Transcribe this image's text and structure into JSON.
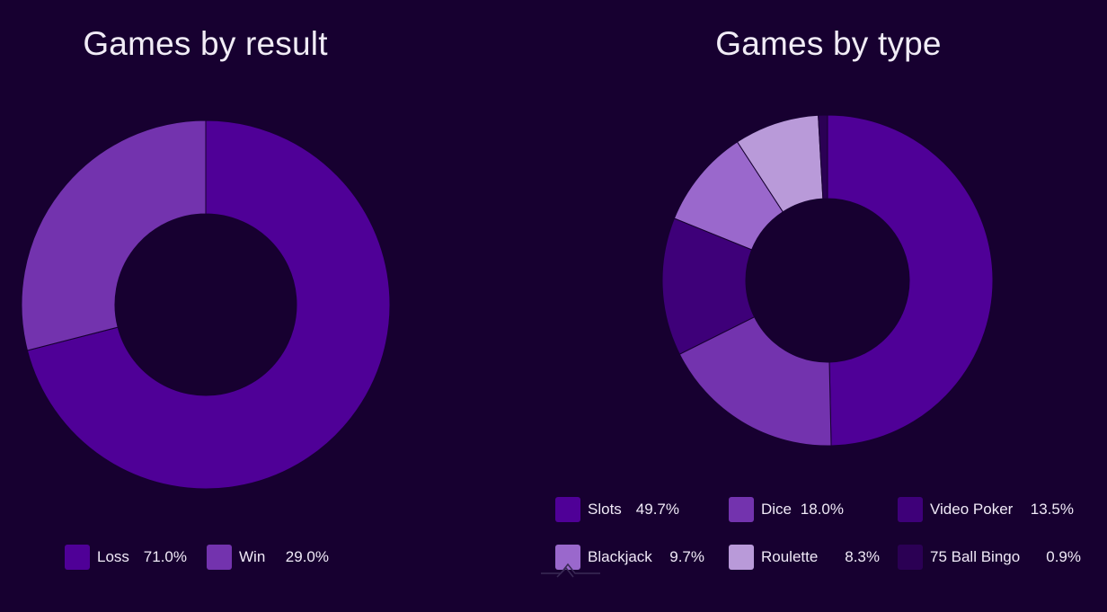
{
  "chart_data": [
    {
      "type": "pie",
      "title": "Games by result",
      "categories": [
        "Loss",
        "Win"
      ],
      "values": [
        71.0,
        29.0
      ],
      "value_labels": [
        "71.0%",
        "29.0%"
      ],
      "colors": [
        "#4f0097",
        "#7333ae"
      ],
      "legend_position": "bottom"
    },
    {
      "type": "pie",
      "title": "Games by type",
      "categories": [
        "Slots",
        "Dice",
        "Video Poker",
        "Blackjack",
        "Roulette",
        "75 Ball Bingo"
      ],
      "values": [
        49.7,
        18.0,
        13.5,
        9.7,
        8.3,
        0.9
      ],
      "value_labels": [
        "49.7%",
        "18.0%",
        "13.5%",
        "9.7%",
        "8.3%",
        "0.9%"
      ],
      "colors": [
        "#4f0097",
        "#7333ae",
        "#3e0079",
        "#9a68cc",
        "#b99ad9",
        "#2b0054"
      ],
      "legend_position": "bottom"
    }
  ]
}
